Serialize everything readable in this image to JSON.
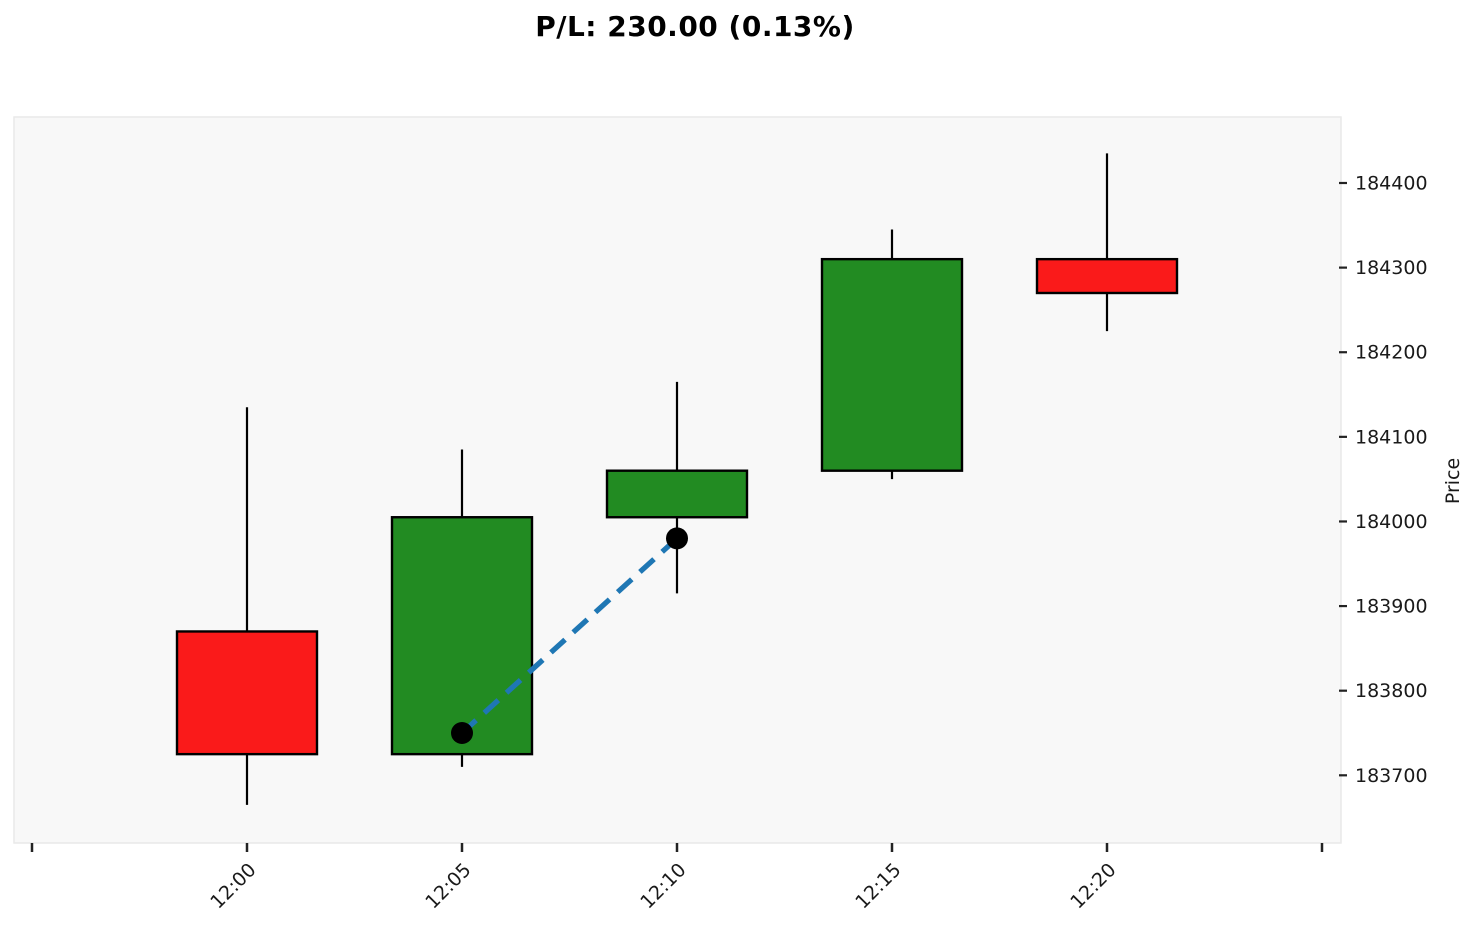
{
  "title": "P/L: 230.00 (0.13%)",
  "chart_data": {
    "type": "candlestick",
    "title": "P/L: 230.00 (0.13%)",
    "xlabel": "",
    "ylabel": "Price",
    "grid": false,
    "legend_position": "none",
    "categories": [
      "12:00",
      "12:05",
      "12:10",
      "12:15",
      "12:20"
    ],
    "candles": [
      {
        "time": "12:00",
        "open": 183870,
        "high": 184135,
        "low": 183665,
        "close": 183725,
        "direction": "down"
      },
      {
        "time": "12:05",
        "open": 183725,
        "high": 184085,
        "low": 183710,
        "close": 184005,
        "direction": "up"
      },
      {
        "time": "12:10",
        "open": 184005,
        "high": 184165,
        "low": 183915,
        "close": 184060,
        "direction": "up"
      },
      {
        "time": "12:15",
        "open": 184060,
        "high": 184345,
        "low": 184050,
        "close": 184310,
        "direction": "up"
      },
      {
        "time": "12:20",
        "open": 184310,
        "high": 184435,
        "low": 184225,
        "close": 184270,
        "direction": "down"
      }
    ],
    "trade_line": {
      "entry": {
        "time": "12:05",
        "price": 183750
      },
      "exit": {
        "time": "12:10",
        "price": 183980
      }
    },
    "y_ticks": [
      183700,
      183800,
      183900,
      184000,
      184100,
      184200,
      184300,
      184400
    ],
    "ylim": [
      183620,
      184478
    ],
    "colors": {
      "up": "#228b22",
      "down": "#fa1a1a",
      "wick": "#000000",
      "body_border": "#000000",
      "trade_line": "#1f77b4",
      "trade_marker": "#000000",
      "plot_bg": "#f8f8f8",
      "plot_border": "#e9e9e9",
      "tick": "#222222",
      "tick_label": "#1a1a1a"
    }
  }
}
